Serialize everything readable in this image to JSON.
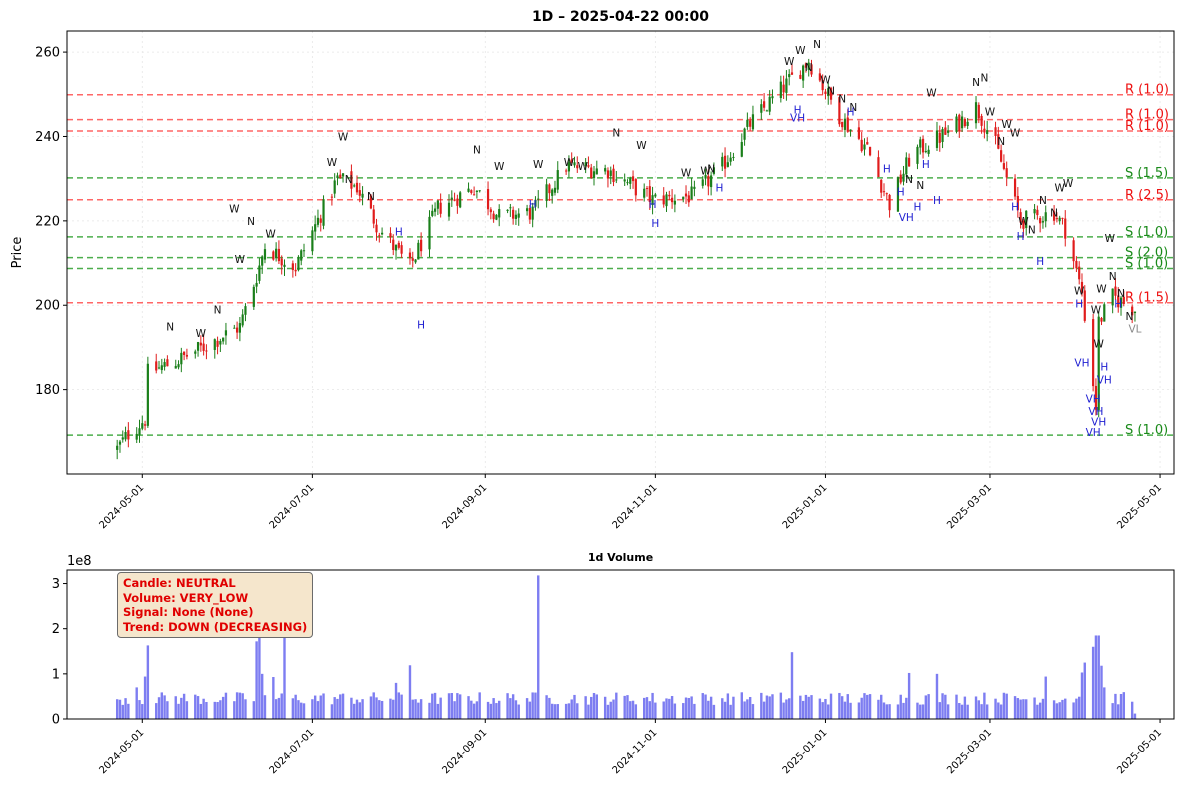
{
  "chart_data": [
    {
      "type": "candlestick",
      "title": "1D – 2025-04-22 00:00",
      "ylabel": "Price",
      "ylim": [
        160,
        265
      ],
      "xlim": [
        "2024-04-04",
        "2025-05-06"
      ],
      "yticks": [
        180,
        200,
        220,
        240,
        260
      ],
      "xticks": [
        "2024-05-01",
        "2024-07-01",
        "2024-09-01",
        "2024-11-01",
        "2025-01-01",
        "2025-03-01",
        "2025-05-01"
      ],
      "grid": true,
      "colors": {
        "up": "#1a7f1a",
        "down": "#e01c1c",
        "support": "#2ca02c",
        "resistance": "#ff4d4d",
        "volume_bar": "#6666ee",
        "label_h": "#1f1fd1"
      },
      "levels": [
        {
          "type": "resistance",
          "price": 249.9,
          "label": "R (1.0)"
        },
        {
          "type": "resistance",
          "price": 244.0,
          "label": "R (1.0)"
        },
        {
          "type": "resistance",
          "price": 241.3,
          "label": "R (1.0)"
        },
        {
          "type": "support",
          "price": 230.2,
          "label": "S (1.5)"
        },
        {
          "type": "resistance",
          "price": 225.0,
          "label": "R (2.5)"
        },
        {
          "type": "support",
          "price": 216.2,
          "label": "S (1.0)"
        },
        {
          "type": "support",
          "price": 211.3,
          "label": "S (2.0)"
        },
        {
          "type": "support",
          "price": 208.7,
          "label": "S (1.0)"
        },
        {
          "type": "resistance",
          "price": 200.6,
          "label": "R (1.5)"
        },
        {
          "type": "support",
          "price": 169.2,
          "label": "S (1.0)"
        }
      ],
      "anchors": [
        [
          "2024-04-22",
          166.0
        ],
        [
          "2024-04-26",
          169.5
        ],
        [
          "2024-05-02",
          173.0
        ],
        [
          "2024-05-03",
          184.0
        ],
        [
          "2024-05-14",
          187.0
        ],
        [
          "2024-05-24",
          190.5
        ],
        [
          "2024-06-05",
          195.0
        ],
        [
          "2024-06-11",
          207.0
        ],
        [
          "2024-06-14",
          214.0
        ],
        [
          "2024-06-25",
          209.0
        ],
        [
          "2024-07-10",
          230.0
        ],
        [
          "2024-07-17",
          228.0
        ],
        [
          "2024-07-25",
          218.0
        ],
        [
          "2024-08-05",
          209.0
        ],
        [
          "2024-08-15",
          223.0
        ],
        [
          "2024-08-28",
          228.0
        ],
        [
          "2024-09-06",
          221.0
        ],
        [
          "2024-09-18",
          222.0
        ],
        [
          "2024-09-30",
          233.0
        ],
        [
          "2024-10-15",
          232.0
        ],
        [
          "2024-10-31",
          225.0
        ],
        [
          "2024-11-15",
          226.0
        ],
        [
          "2024-11-25",
          233.0
        ],
        [
          "2024-12-05",
          243.0
        ],
        [
          "2024-12-16",
          251.0
        ],
        [
          "2024-12-26",
          258.0
        ],
        [
          "2025-01-06",
          245.0
        ],
        [
          "2025-01-16",
          237.0
        ],
        [
          "2025-01-24",
          224.0
        ],
        [
          "2025-02-01",
          236.0
        ],
        [
          "2025-02-14",
          241.0
        ],
        [
          "2025-02-24",
          247.0
        ],
        [
          "2025-03-03",
          238.0
        ],
        [
          "2025-03-12",
          220.0
        ],
        [
          "2025-03-24",
          222.0
        ],
        [
          "2025-03-28",
          218.0
        ],
        [
          "2025-04-03",
          203.0
        ],
        [
          "2025-04-08",
          176.0
        ],
        [
          "2025-04-09",
          196.0
        ],
        [
          "2025-04-14",
          202.0
        ],
        [
          "2025-04-22",
          199.0
        ]
      ],
      "annotations": [
        {
          "text": "N",
          "date": "2024-12-29",
          "price": 261.0
        },
        {
          "text": "W",
          "date": "2024-12-23",
          "price": 259.5
        },
        {
          "text": "W",
          "date": "2024-12-19",
          "price": 257.0
        },
        {
          "text": "N",
          "date": "2024-12-26",
          "price": 255.5
        },
        {
          "text": "W",
          "date": "2025-01-01",
          "price": 252.5
        },
        {
          "text": "N",
          "date": "2025-01-03",
          "price": 250.0
        },
        {
          "text": "N",
          "date": "2025-01-07",
          "price": 248.0
        },
        {
          "text": "N",
          "date": "2025-01-11",
          "price": 246.0
        },
        {
          "text": "H",
          "date": "2024-12-22",
          "price": 245.5
        },
        {
          "text": "VH",
          "date": "2024-12-22",
          "price": 243.5
        },
        {
          "text": "W",
          "date": "2024-07-12",
          "price": 239.0
        },
        {
          "text": "W",
          "date": "2024-07-08",
          "price": 233.0
        },
        {
          "text": "N",
          "date": "2024-07-14",
          "price": 229.0
        },
        {
          "text": "N",
          "date": "2024-07-22",
          "price": 225.0
        },
        {
          "text": "H",
          "date": "2024-08-01",
          "price": 216.5
        },
        {
          "text": "H",
          "date": "2024-08-09",
          "price": 194.5
        },
        {
          "text": "W",
          "date": "2024-06-03",
          "price": 222.0
        },
        {
          "text": "N",
          "date": "2024-06-09",
          "price": 219.0
        },
        {
          "text": "W",
          "date": "2024-06-16",
          "price": 216.0
        },
        {
          "text": "W",
          "date": "2024-06-05",
          "price": 210.0
        },
        {
          "text": "N",
          "date": "2024-05-11",
          "price": 194.0
        },
        {
          "text": "W",
          "date": "2024-05-22",
          "price": 192.5
        },
        {
          "text": "N",
          "date": "2024-05-28",
          "price": 198.0
        },
        {
          "text": "N",
          "date": "2024-08-29",
          "price": 236.0
        },
        {
          "text": "W",
          "date": "2024-09-06",
          "price": 232.0
        },
        {
          "text": "W",
          "date": "2024-09-20",
          "price": 232.5
        },
        {
          "text": "W",
          "date": "2024-10-01",
          "price": 233.0
        },
        {
          "text": "W",
          "date": "2024-10-06",
          "price": 232.0
        },
        {
          "text": "N",
          "date": "2024-10-18",
          "price": 240.0
        },
        {
          "text": "W",
          "date": "2024-10-27",
          "price": 237.0
        },
        {
          "text": "H",
          "date": "2024-09-18",
          "price": 223.0
        },
        {
          "text": "H",
          "date": "2024-10-31",
          "price": 223.0
        },
        {
          "text": "H",
          "date": "2024-11-01",
          "price": 218.5
        },
        {
          "text": "H",
          "date": "2024-11-24",
          "price": 227.0
        },
        {
          "text": "W",
          "date": "2024-11-12",
          "price": 230.5
        },
        {
          "text": "W",
          "date": "2024-11-19",
          "price": 231.0
        },
        {
          "text": "N",
          "date": "2024-11-21",
          "price": 231.5
        },
        {
          "text": "W",
          "date": "2025-02-08",
          "price": 249.5
        },
        {
          "text": "N",
          "date": "2025-02-27",
          "price": 253.0
        },
        {
          "text": "N",
          "date": "2025-02-24",
          "price": 252.0
        },
        {
          "text": "W",
          "date": "2025-03-01",
          "price": 245.0
        },
        {
          "text": "W",
          "date": "2025-03-07",
          "price": 242.0
        },
        {
          "text": "N",
          "date": "2025-03-05",
          "price": 238.0
        },
        {
          "text": "W",
          "date": "2025-03-10",
          "price": 240.0
        },
        {
          "text": "H",
          "date": "2025-01-10",
          "price": 245.0
        },
        {
          "text": "H",
          "date": "2025-01-23",
          "price": 231.5
        },
        {
          "text": "H",
          "date": "2025-01-28",
          "price": 226.0
        },
        {
          "text": "VH",
          "date": "2025-01-30",
          "price": 220.0
        },
        {
          "text": "H",
          "date": "2025-02-03",
          "price": 222.5
        },
        {
          "text": "H",
          "date": "2025-02-06",
          "price": 232.5
        },
        {
          "text": "H",
          "date": "2025-02-10",
          "price": 224.0
        },
        {
          "text": "N",
          "date": "2025-01-31",
          "price": 229.0
        },
        {
          "text": "N",
          "date": "2025-02-04",
          "price": 227.5
        },
        {
          "text": "W",
          "date": "2025-03-26",
          "price": 227.0
        },
        {
          "text": "W",
          "date": "2025-03-29",
          "price": 228.0
        },
        {
          "text": "N",
          "date": "2025-03-20",
          "price": 224.0
        },
        {
          "text": "N",
          "date": "2025-03-24",
          "price": 221.0
        },
        {
          "text": "W",
          "date": "2025-03-13",
          "price": 219.0
        },
        {
          "text": "N",
          "date": "2025-03-16",
          "price": 217.0
        },
        {
          "text": "H",
          "date": "2025-03-10",
          "price": 222.5
        },
        {
          "text": "H",
          "date": "2025-03-12",
          "price": 215.5
        },
        {
          "text": "H",
          "date": "2025-03-19",
          "price": 209.5
        },
        {
          "text": "W",
          "date": "2025-04-02",
          "price": 202.5
        },
        {
          "text": "H",
          "date": "2025-04-02",
          "price": 199.5
        },
        {
          "text": "W",
          "date": "2025-04-10",
          "price": 203.0
        },
        {
          "text": "W",
          "date": "2025-04-08",
          "price": 198.0
        },
        {
          "text": "W",
          "date": "2025-04-13",
          "price": 215.0
        },
        {
          "text": "N",
          "date": "2025-04-14",
          "price": 206.0
        },
        {
          "text": "N",
          "date": "2025-04-17",
          "price": 202.0
        },
        {
          "text": "W",
          "date": "2025-04-09",
          "price": 190.0
        },
        {
          "text": "VH",
          "date": "2025-04-03",
          "price": 185.5
        },
        {
          "text": "VH",
          "date": "2025-04-07",
          "price": 177.0
        },
        {
          "text": "VH",
          "date": "2025-04-08",
          "price": 174.0
        },
        {
          "text": "VH",
          "date": "2025-04-09",
          "price": 171.5
        },
        {
          "text": "VH",
          "date": "2025-04-07",
          "price": 169.0
        },
        {
          "text": "VH",
          "date": "2025-04-11",
          "price": 181.5
        },
        {
          "text": "H",
          "date": "2025-04-11",
          "price": 184.5
        },
        {
          "text": "H",
          "date": "2025-04-16",
          "price": 199.5
        },
        {
          "text": "N",
          "date": "2025-04-20",
          "price": 196.5
        },
        {
          "text": "VL",
          "date": "2025-04-22",
          "price": 193.5
        }
      ]
    },
    {
      "type": "bar",
      "title": "1d Volume",
      "ylabel": "",
      "y_offset_label": "1e8",
      "ylim": [
        0,
        3.3
      ],
      "yticks": [
        0,
        1,
        2,
        3
      ],
      "xticks": [
        "2024-05-01",
        "2024-07-01",
        "2024-09-01",
        "2024-11-01",
        "2025-01-01",
        "2025-03-01",
        "2025-05-01"
      ],
      "typical_volume": 0.48,
      "spikes": [
        [
          "2024-04-29",
          0.7
        ],
        [
          "2024-05-02",
          0.94
        ],
        [
          "2024-05-03",
          1.63
        ],
        [
          "2024-06-11",
          1.72
        ],
        [
          "2024-06-12",
          1.97
        ],
        [
          "2024-06-13",
          1.0
        ],
        [
          "2024-06-21",
          2.46
        ],
        [
          "2024-06-17",
          0.93
        ],
        [
          "2024-07-31",
          0.8
        ],
        [
          "2024-08-05",
          1.19
        ],
        [
          "2024-09-20",
          3.18
        ],
        [
          "2024-12-20",
          1.48
        ],
        [
          "2025-01-31",
          1.02
        ],
        [
          "2025-02-10",
          1.0
        ],
        [
          "2025-03-21",
          0.94
        ],
        [
          "2025-04-03",
          1.03
        ],
        [
          "2025-04-04",
          1.25
        ],
        [
          "2025-04-07",
          1.6
        ],
        [
          "2025-04-08",
          1.85
        ],
        [
          "2025-04-09",
          1.85
        ],
        [
          "2025-04-10",
          1.18
        ],
        [
          "2025-04-11",
          0.7
        ]
      ],
      "last_date": "2025-04-22"
    }
  ],
  "info_box": {
    "line1": "Candle: NEUTRAL",
    "line2": "Volume: VERY_LOW",
    "line3": "Signal: None (None)",
    "line4": "Trend: DOWN (DECREASING)"
  }
}
